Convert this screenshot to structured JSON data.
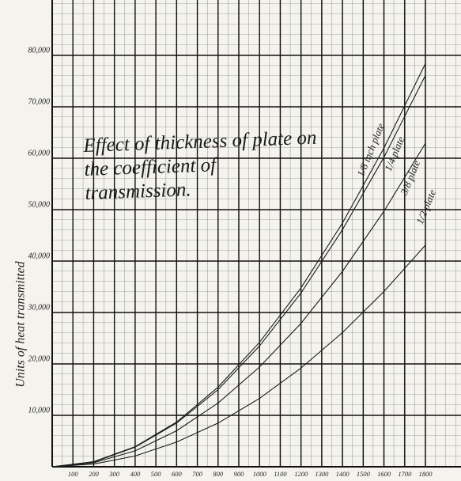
{
  "chart_data": {
    "type": "line",
    "title": "Effect of thickness of plate on the coefficient of transmission.",
    "y_label": "Units of heat transmitted",
    "x": [
      0,
      200,
      400,
      600,
      800,
      1000,
      1200,
      1400,
      1600,
      1800
    ],
    "series": [
      {
        "name": "1/8 inch plate",
        "color": "#1a1a1a",
        "values": [
          0,
          1000,
          3900,
          8700,
          15500,
          24200,
          34800,
          47400,
          62000,
          78400
        ]
      },
      {
        "name": "1/4 plate",
        "color": "#1a1a1a",
        "values": [
          0,
          900,
          3800,
          8500,
          15000,
          23500,
          33800,
          46100,
          60200,
          76100
        ]
      },
      {
        "name": "3/8 plate",
        "color": "#1a1a1a",
        "values": [
          0,
          780,
          3100,
          7000,
          12400,
          19400,
          27900,
          38000,
          49700,
          62900
        ]
      },
      {
        "name": "1/2 plate",
        "color": "#1a1a1a",
        "values": [
          0,
          530,
          2100,
          4800,
          8500,
          13300,
          19200,
          26100,
          34100,
          43100
        ]
      }
    ],
    "xlim": [
      0,
      1960
    ],
    "ylim": [
      0,
      90000
    ],
    "xticks": [
      100,
      200,
      300,
      400,
      500,
      600,
      700,
      800,
      900,
      1000,
      1100,
      1200,
      1300,
      1400,
      1500,
      1600,
      1700,
      1800
    ],
    "yticks": [
      {
        "value": 10000,
        "label": "10,000"
      },
      {
        "value": 20000,
        "label": "20,000"
      },
      {
        "value": 30000,
        "label": "30,000"
      },
      {
        "value": 40000,
        "label": "40,000"
      },
      {
        "value": 50000,
        "label": "50,000"
      },
      {
        "value": 60000,
        "label": "60,000"
      },
      {
        "value": 70000,
        "label": "70,000"
      },
      {
        "value": 80000,
        "label": "80,000"
      }
    ],
    "grid": true
  }
}
